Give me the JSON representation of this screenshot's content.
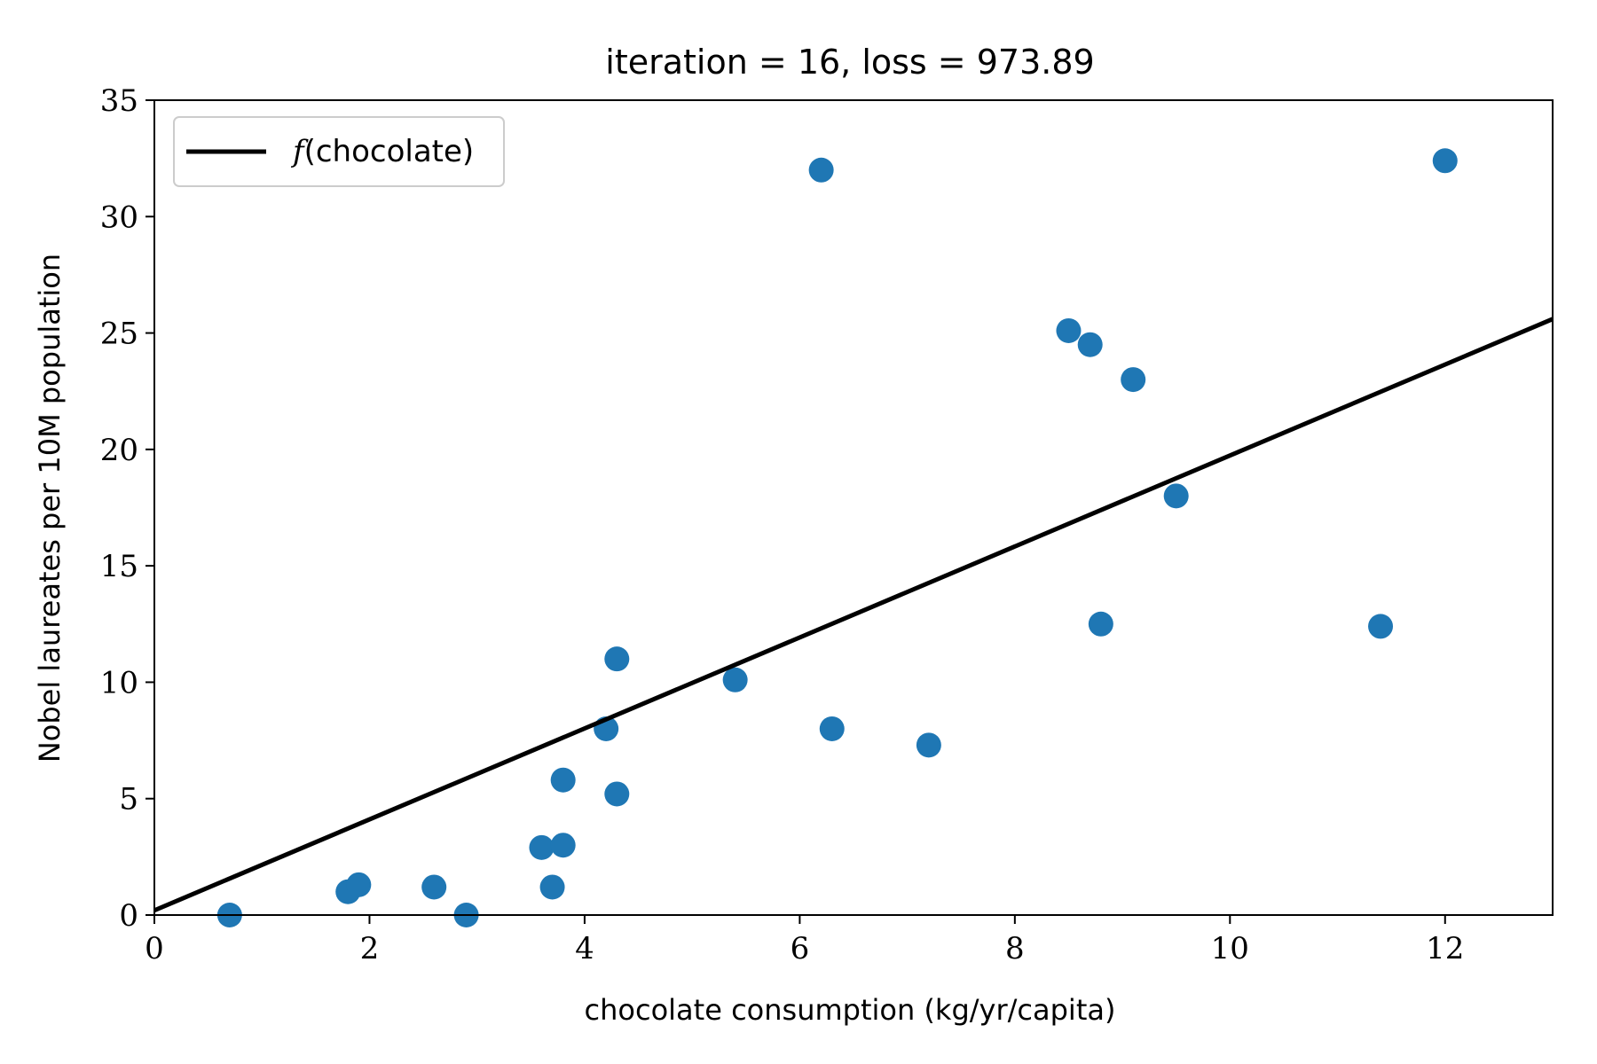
{
  "chart_data": {
    "type": "scatter",
    "title": "iteration = 16, loss = 973.89",
    "xlabel": "chocolate consumption (kg/yr/capita)",
    "ylabel": "Nobel laureates per 10M population",
    "xlim": [
      0,
      13
    ],
    "ylim": [
      0,
      35
    ],
    "xticks": [
      "0",
      "2",
      "4",
      "6",
      "8",
      "10",
      "12"
    ],
    "yticks": [
      "0",
      "5",
      "10",
      "15",
      "20",
      "25",
      "30",
      "35"
    ],
    "grid": false,
    "legend": {
      "placement": "top-left",
      "entries": [
        {
          "label_italic": "f",
          "label_text": "(chocolate)",
          "color": "#000000"
        }
      ]
    },
    "points": [
      {
        "x": 0.7,
        "y": 0.0
      },
      {
        "x": 1.8,
        "y": 1.0
      },
      {
        "x": 1.9,
        "y": 1.3
      },
      {
        "x": 2.6,
        "y": 1.2
      },
      {
        "x": 2.9,
        "y": 0.0
      },
      {
        "x": 3.6,
        "y": 2.9
      },
      {
        "x": 3.7,
        "y": 1.2
      },
      {
        "x": 3.8,
        "y": 3.0
      },
      {
        "x": 3.8,
        "y": 5.8
      },
      {
        "x": 4.2,
        "y": 8.0
      },
      {
        "x": 4.3,
        "y": 5.2
      },
      {
        "x": 4.3,
        "y": 11.0
      },
      {
        "x": 5.4,
        "y": 10.1
      },
      {
        "x": 6.2,
        "y": 32.0
      },
      {
        "x": 6.3,
        "y": 8.0
      },
      {
        "x": 7.2,
        "y": 7.3
      },
      {
        "x": 8.5,
        "y": 25.1
      },
      {
        "x": 8.7,
        "y": 24.5
      },
      {
        "x": 8.8,
        "y": 12.5
      },
      {
        "x": 9.1,
        "y": 23.0
      },
      {
        "x": 9.5,
        "y": 18.0
      },
      {
        "x": 11.4,
        "y": 12.4
      },
      {
        "x": 12.0,
        "y": 32.4
      }
    ],
    "line": {
      "x": [
        0,
        13
      ],
      "y": [
        0.2,
        25.6
      ]
    },
    "colors": {
      "points": "#1f77b4",
      "line": "#000000"
    }
  }
}
